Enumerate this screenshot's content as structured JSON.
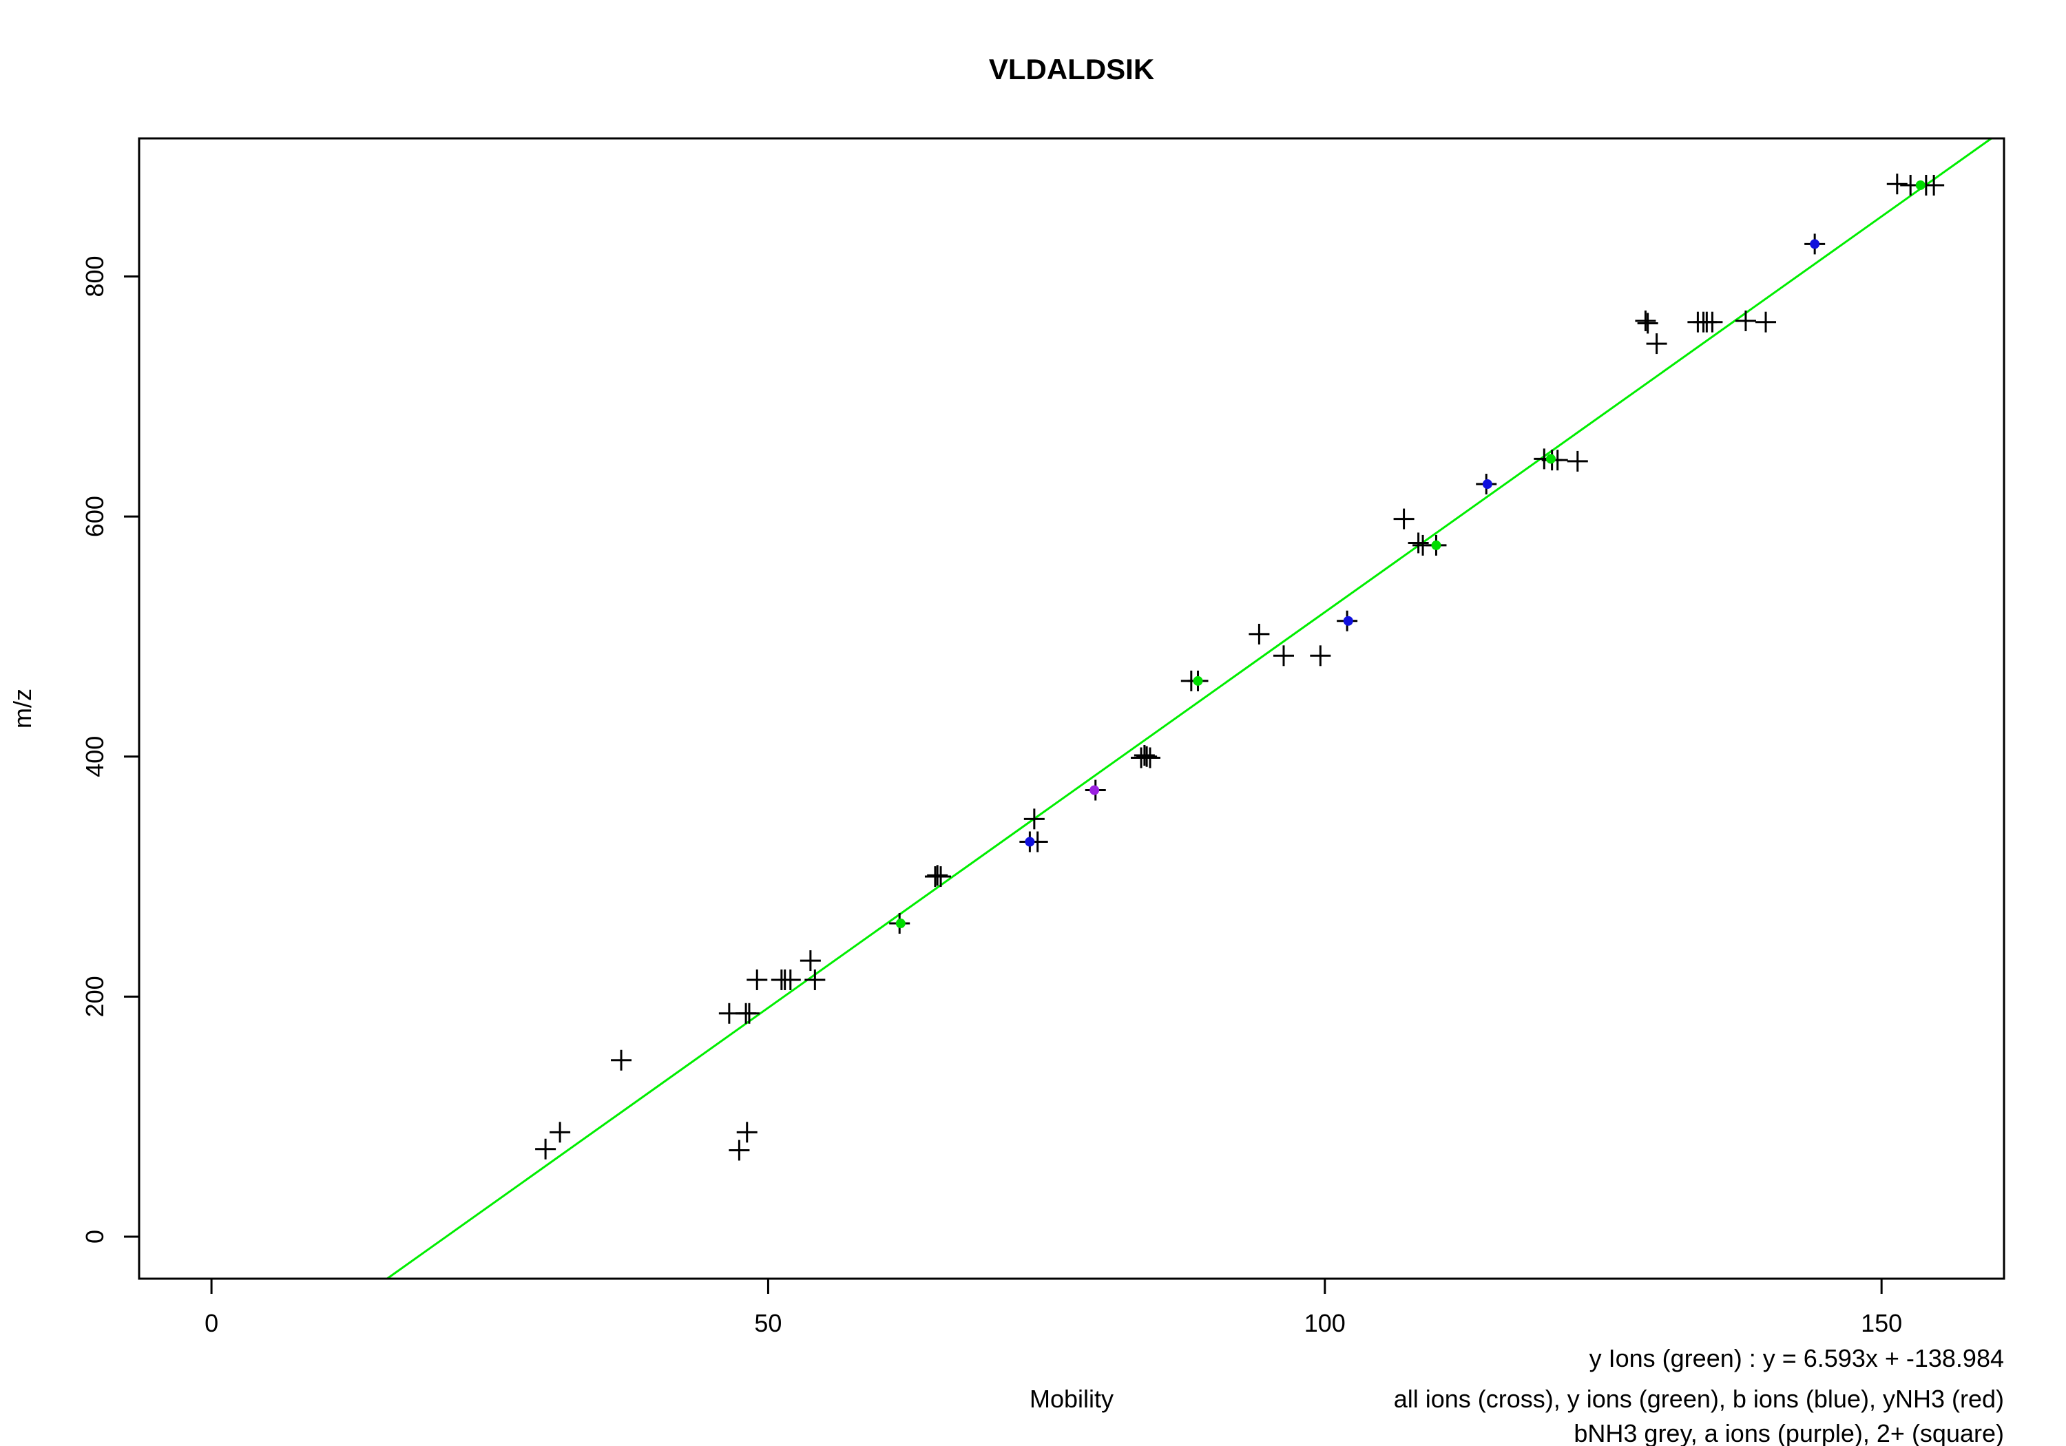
{
  "chart_data": {
    "type": "scatter",
    "title": "VLDALDSIK",
    "xlabel": "Mobility",
    "ylabel": "m/z",
    "xlim": [
      -6.5,
      161
    ],
    "ylim": [
      -35,
      915
    ],
    "x_ticks": [
      0,
      50,
      100,
      150
    ],
    "y_ticks": [
      0,
      200,
      400,
      600,
      800
    ],
    "grid": false,
    "legend": "none",
    "fit": {
      "label": "y Ions (green)",
      "equation": "y = 6.593x + -138.984",
      "slope": 6.593,
      "intercept": -138.984,
      "color": "#00ee00"
    },
    "notes": [
      "all ions (cross), y ions (green), b ions (blue), yNH3 (red)",
      "bNH3 grey, a ions (purple), 2+ (square)"
    ],
    "colors": {
      "all": "#000000",
      "y": "#00dd00",
      "b": "#1010dd",
      "a": "#9a20e0",
      "line": "#00ee00"
    },
    "series": [
      {
        "name": "all ions (cross)",
        "marker": "cross",
        "points": [
          [
            30,
            73
          ],
          [
            31.3,
            87
          ],
          [
            36.8,
            147
          ],
          [
            46.5,
            186
          ],
          [
            48,
            186
          ],
          [
            48.3,
            186
          ],
          [
            47.4,
            72
          ],
          [
            48.1,
            87
          ],
          [
            49,
            214
          ],
          [
            51.2,
            214
          ],
          [
            51.5,
            214
          ],
          [
            52,
            214
          ],
          [
            54.2,
            214
          ],
          [
            53.8,
            230
          ],
          [
            61.8,
            261
          ],
          [
            65,
            300
          ],
          [
            65.2,
            301
          ],
          [
            65.5,
            300
          ],
          [
            73.5,
            329
          ],
          [
            73.9,
            348
          ],
          [
            74.2,
            329
          ],
          [
            79.4,
            372
          ],
          [
            83.5,
            399
          ],
          [
            83.8,
            401
          ],
          [
            84,
            400
          ],
          [
            84.3,
            399
          ],
          [
            88,
            463
          ],
          [
            88.6,
            463
          ],
          [
            94.1,
            502
          ],
          [
            96.3,
            484
          ],
          [
            99.6,
            484
          ],
          [
            102,
            513
          ],
          [
            107.1,
            598
          ],
          [
            108.4,
            578
          ],
          [
            108.8,
            576
          ],
          [
            110,
            576
          ],
          [
            114.5,
            627
          ],
          [
            119.7,
            648
          ],
          [
            120.4,
            647
          ],
          [
            120.9,
            647
          ],
          [
            122.7,
            646
          ],
          [
            128.8,
            763
          ],
          [
            129,
            761
          ],
          [
            129.8,
            744
          ],
          [
            133.5,
            762
          ],
          [
            134,
            762
          ],
          [
            134.3,
            762
          ],
          [
            134.8,
            762
          ],
          [
            137.8,
            763
          ],
          [
            139.6,
            762
          ],
          [
            144,
            827
          ],
          [
            151.4,
            877
          ],
          [
            152.6,
            876
          ],
          [
            154,
            876
          ],
          [
            154.7,
            876
          ]
        ]
      },
      {
        "name": "y ions (green)",
        "marker": "dot",
        "points": [
          [
            61.9,
            261
          ],
          [
            88.6,
            463
          ],
          [
            110,
            576
          ],
          [
            120.3,
            648
          ],
          [
            153.5,
            876
          ]
        ]
      },
      {
        "name": "b ions (blue)",
        "marker": "dot",
        "points": [
          [
            73.5,
            329
          ],
          [
            102.1,
            513
          ],
          [
            114.6,
            627
          ],
          [
            144,
            827
          ]
        ]
      },
      {
        "name": "a ions (purple)",
        "marker": "dot",
        "points": [
          [
            79.3,
            372
          ]
        ]
      }
    ]
  }
}
